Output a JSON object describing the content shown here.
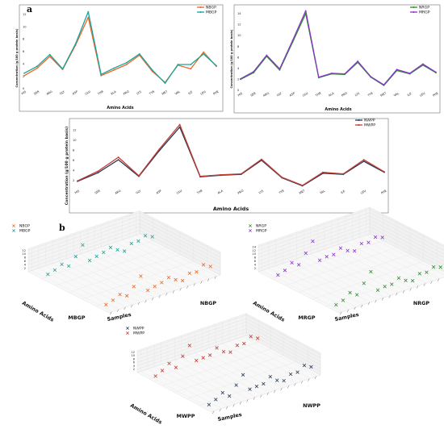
{
  "labels": {
    "panel_a": "a",
    "panel_b": "b"
  },
  "chart_data": [
    {
      "id": "line1",
      "type": "line",
      "xlabel": "Amino Acids",
      "ylabel": "Concentration (g/100 g protein basis)",
      "categories": [
        "HIS",
        "SER",
        "ARG",
        "GLY",
        "ASP",
        "GLU",
        "THR",
        "ALA",
        "PRO",
        "LYS",
        "TYR",
        "MET",
        "VAL",
        "ILE",
        "LEU",
        "PHE"
      ],
      "yticks": [
        0,
        2,
        4,
        6,
        8,
        10,
        12
      ],
      "ylim": [
        0,
        13
      ],
      "legend_position": "top-right",
      "series": [
        {
          "name": "NBGP",
          "color": "#e8692a",
          "values": [
            2.1,
            3.3,
            5.2,
            3.1,
            7.0,
            11.5,
            2.1,
            3.0,
            3.9,
            5.4,
            2.8,
            1.0,
            3.8,
            3.2,
            5.9,
            3.6
          ]
        },
        {
          "name": "MBGP",
          "color": "#1aa39a",
          "values": [
            2.5,
            3.6,
            5.5,
            3.2,
            7.2,
            12.4,
            2.3,
            3.3,
            4.2,
            5.6,
            3.0,
            0.9,
            3.9,
            3.9,
            5.6,
            3.7
          ]
        }
      ]
    },
    {
      "id": "line2",
      "type": "line",
      "xlabel": "Amino Acids",
      "ylabel": "Concentration (g/100 g protein basis)",
      "categories": [
        "HIS",
        "SER",
        "ARG",
        "GLY",
        "ASP",
        "GLU",
        "THR",
        "ALA",
        "PRO",
        "LYS",
        "TYR",
        "MET",
        "VAL",
        "ILE",
        "LEU",
        "PHE"
      ],
      "yticks": [
        0,
        2,
        4,
        6,
        8,
        10,
        12,
        14
      ],
      "ylim": [
        0,
        15
      ],
      "legend_position": "top-right",
      "series": [
        {
          "name": "NRGP",
          "color": "#2f8f2f",
          "values": [
            2.0,
            3.2,
            6.2,
            3.7,
            8.8,
            14.0,
            2.3,
            3.0,
            2.9,
            5.1,
            2.4,
            0.9,
            3.6,
            3.0,
            4.6,
            3.2
          ]
        },
        {
          "name": "MRGP",
          "color": "#8a35c9",
          "values": [
            2.1,
            3.4,
            6.4,
            3.9,
            9.1,
            14.5,
            2.4,
            3.1,
            3.0,
            5.3,
            2.5,
            1.0,
            3.8,
            3.1,
            4.8,
            3.3
          ]
        }
      ]
    },
    {
      "id": "line3",
      "type": "line",
      "xlabel": "Amino Acids",
      "ylabel": "Concentration (g/100 g protein basis)",
      "categories": [
        "HIS",
        "SER",
        "ARG",
        "GLY",
        "ASP",
        "GLU",
        "THR",
        "ALA",
        "PRO",
        "LYS",
        "TYR",
        "MET",
        "VAL",
        "ILE",
        "LEU",
        "PHE"
      ],
      "yticks": [
        2,
        4,
        6,
        8,
        10,
        12
      ],
      "ylim": [
        0.5,
        13.5
      ],
      "legend_position": "top-right",
      "series": [
        {
          "name": "NWPP",
          "color": "#2a3a55",
          "values": [
            1.8,
            3.5,
            6.1,
            2.8,
            7.9,
            12.6,
            2.7,
            3.0,
            3.2,
            6.0,
            2.5,
            0.9,
            3.4,
            3.2,
            5.8,
            3.6
          ]
        },
        {
          "name": "MWPP",
          "color": "#c23a32",
          "values": [
            1.9,
            3.8,
            6.6,
            2.9,
            8.2,
            13.1,
            2.8,
            3.1,
            3.3,
            6.2,
            2.6,
            1.0,
            3.6,
            3.3,
            6.1,
            3.7
          ]
        }
      ]
    },
    {
      "id": "s1",
      "type": "scatter",
      "xlabel": "Amino Acids",
      "ylabel": "Samples",
      "yticks": [
        2,
        4,
        6,
        8,
        10,
        12
      ],
      "legend_position": "top-left",
      "sample_labels": [
        "MBGP",
        "NBGP"
      ],
      "series": [
        {
          "name": "NBGP",
          "color": "#e8692a",
          "values": [
            2.1,
            3.3,
            5.2,
            3.1,
            7.0,
            11.5,
            2.1,
            3.0,
            3.9,
            5.4,
            2.8,
            1.0,
            3.8,
            3.2,
            5.9,
            3.6
          ]
        },
        {
          "name": "MBGP",
          "color": "#1aa39a",
          "values": [
            2.5,
            3.6,
            5.5,
            3.2,
            7.2,
            12.4,
            2.3,
            3.3,
            4.2,
            5.6,
            3.0,
            0.9,
            3.9,
            3.9,
            5.6,
            3.7
          ]
        }
      ]
    },
    {
      "id": "s2",
      "type": "scatter",
      "xlabel": "Amino Acids",
      "ylabel": "Samples",
      "yticks": [
        2,
        4,
        6,
        8,
        10,
        12,
        14
      ],
      "legend_position": "top-left",
      "sample_labels": [
        "MRGP",
        "NRGP"
      ],
      "series": [
        {
          "name": "NRGP",
          "color": "#2f8f2f",
          "values": [
            2.0,
            3.2,
            6.2,
            3.7,
            8.8,
            14.0,
            2.3,
            3.0,
            2.9,
            5.1,
            2.4,
            0.9,
            3.6,
            3.0,
            4.6,
            3.2
          ]
        },
        {
          "name": "MRGP",
          "color": "#8a35c9",
          "values": [
            2.1,
            3.4,
            6.4,
            3.9,
            9.1,
            14.5,
            2.4,
            3.1,
            3.0,
            5.3,
            2.5,
            1.0,
            3.8,
            3.1,
            4.8,
            3.3
          ]
        }
      ]
    },
    {
      "id": "s3",
      "type": "scatter",
      "xlabel": "Amino Acids",
      "ylabel": "Samples",
      "yticks": [
        2,
        4,
        6,
        8,
        10,
        12
      ],
      "legend_position": "top-left",
      "sample_labels": [
        "MWPP",
        "NWPP"
      ],
      "series": [
        {
          "name": "NWPP",
          "color": "#2a3a55",
          "values": [
            1.8,
            3.5,
            6.1,
            2.8,
            7.9,
            12.6,
            2.7,
            3.0,
            3.2,
            6.0,
            2.5,
            0.9,
            3.4,
            3.2,
            5.8,
            3.6
          ]
        },
        {
          "name": "MWPP",
          "color": "#c23a32",
          "values": [
            1.9,
            3.8,
            6.6,
            2.9,
            8.2,
            13.1,
            2.8,
            3.1,
            3.3,
            6.2,
            2.6,
            1.0,
            3.6,
            3.3,
            6.1,
            3.7
          ]
        }
      ]
    }
  ]
}
